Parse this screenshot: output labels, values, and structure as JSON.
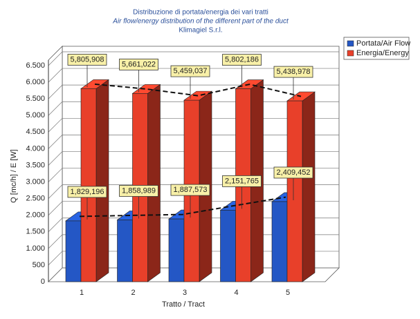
{
  "chart_data": {
    "type": "bar",
    "title": "Distribuzione di portata/energia dei vari tratti",
    "subtitle": "Air flow/energy distribution of the different part of the duct",
    "company": "Klimagiel S.r.l.",
    "x_label": "Tratto / Tract",
    "y_label": "Q [mc/h]  /  E [W]",
    "categories": [
      "1",
      "2",
      "3",
      "4",
      "5"
    ],
    "series": [
      {
        "name": "Portata/Air Flow",
        "color": "#2457c5",
        "values": [
          1829.196,
          1858.989,
          1887.573,
          2151.765,
          2409.452
        ],
        "value_labels": [
          "1,829,196",
          "1,858,989",
          "1,887,573",
          "2,151,765",
          "2,409,452"
        ]
      },
      {
        "name": "Energia/Energy",
        "color": "#e8402a",
        "values": [
          5805.908,
          5661.022,
          5459.037,
          5802.186,
          5438.978
        ],
        "value_labels": [
          "5,805,908",
          "5,661,022",
          "5,459,037",
          "5,802,186",
          "5,438,978"
        ]
      }
    ],
    "ylim": [
      0,
      6500
    ],
    "yticks": [
      0,
      500,
      {
        "value": 1000,
        "label": "1.000"
      },
      {
        "value": 1500,
        "label": "1.500"
      },
      {
        "value": 2000,
        "label": "2.000"
      },
      {
        "value": 2500,
        "label": "2.500"
      },
      {
        "value": 3000,
        "label": "3.000"
      },
      {
        "value": 3500,
        "label": "3.500"
      },
      {
        "value": 4000,
        "label": "4.000"
      },
      {
        "value": 4500,
        "label": "4.500"
      },
      {
        "value": 5000,
        "label": "5.000"
      },
      {
        "value": 5500,
        "label": "5.500"
      },
      {
        "value": 6000,
        "label": "6.000"
      },
      {
        "value": 6500,
        "label": "6.500"
      }
    ],
    "grid": true
  }
}
